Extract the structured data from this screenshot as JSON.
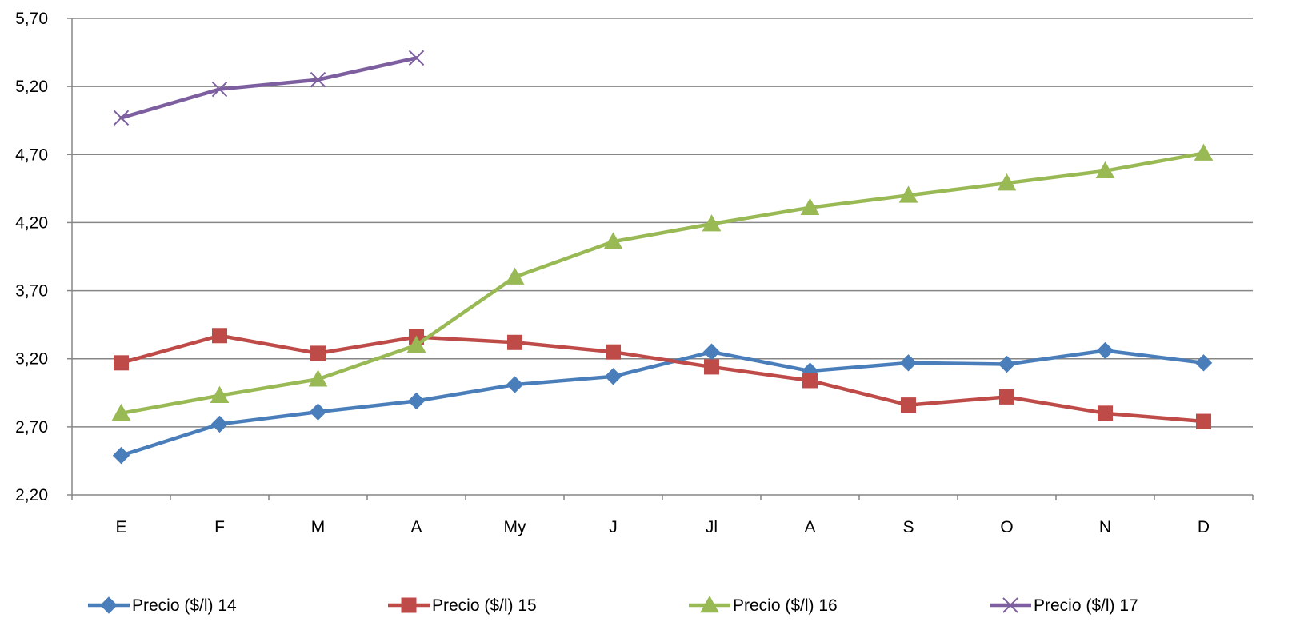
{
  "chart_data": {
    "type": "line",
    "title": "",
    "xlabel": "",
    "ylabel": "",
    "categories": [
      "E",
      "F",
      "M",
      "A",
      "My",
      "J",
      "Jl",
      "A",
      "S",
      "O",
      "N",
      "D"
    ],
    "y_ticks": [
      "2,20",
      "2,70",
      "3,20",
      "3,70",
      "4,20",
      "4,70",
      "5,20",
      "5,70"
    ],
    "ylim": [
      2.2,
      5.7
    ],
    "grid": "horizontal",
    "legend_position": "bottom",
    "series": [
      {
        "name": "Precio ($/l) 14",
        "color": "#4a7ebb",
        "marker": "diamond",
        "values": [
          2.49,
          2.72,
          2.81,
          2.89,
          3.01,
          3.07,
          3.25,
          3.11,
          3.17,
          3.16,
          3.26,
          3.17
        ]
      },
      {
        "name": "Precio ($/l) 15",
        "color": "#be4b48",
        "marker": "square",
        "values": [
          3.17,
          3.37,
          3.24,
          3.36,
          3.32,
          3.25,
          3.14,
          3.04,
          2.86,
          2.92,
          2.8,
          2.74
        ]
      },
      {
        "name": "Precio ($/l) 16",
        "color": "#98b954",
        "marker": "triangle",
        "values": [
          2.8,
          2.93,
          3.05,
          3.3,
          3.8,
          4.06,
          4.19,
          4.31,
          4.4,
          4.49,
          4.58,
          4.71
        ]
      },
      {
        "name": "Precio ($/l) 17",
        "color": "#7d5fa0",
        "marker": "x",
        "values": [
          4.97,
          5.18,
          5.25,
          5.41,
          null,
          null,
          null,
          null,
          null,
          null,
          null,
          null
        ]
      }
    ]
  }
}
